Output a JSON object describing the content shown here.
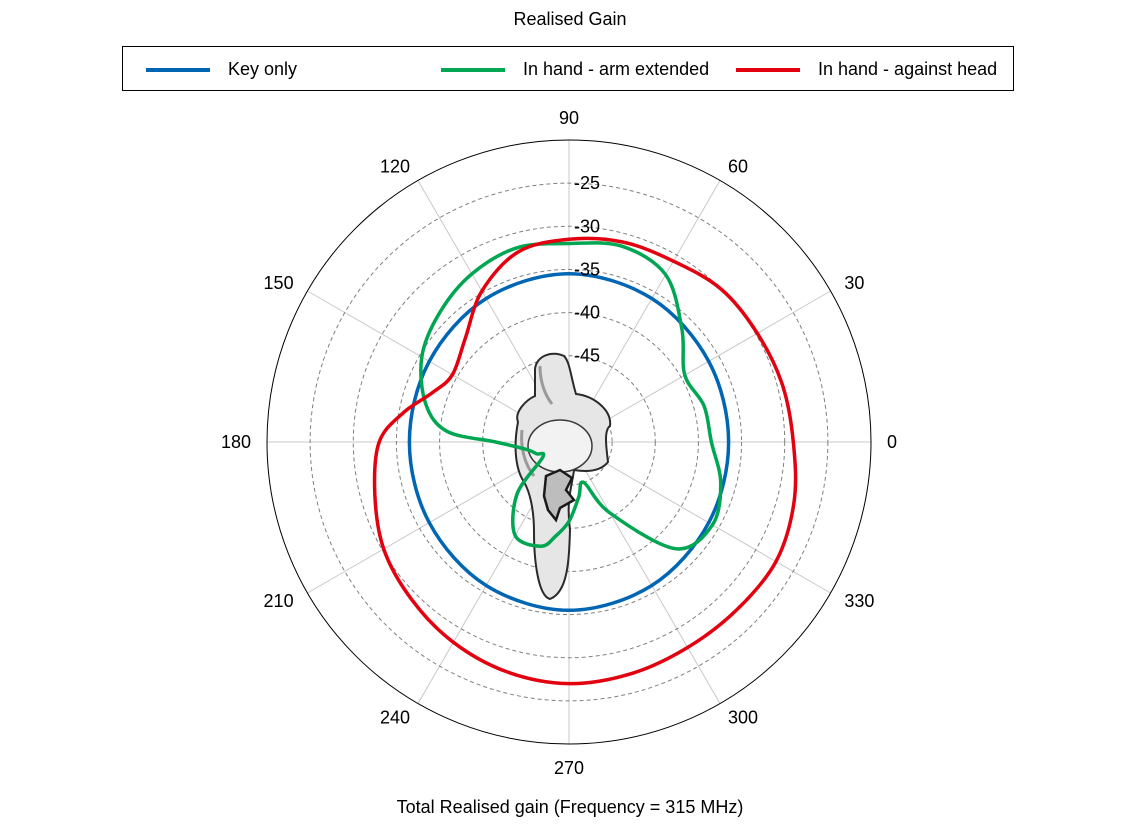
{
  "chart_data": {
    "type": "polar-line",
    "title": "Realised Gain",
    "caption": "Total Realised gain (Frequency = 315 MHz)",
    "angle_unit": "deg",
    "angle_ticks": [
      0,
      30,
      60,
      90,
      120,
      150,
      180,
      210,
      240,
      270,
      300,
      330
    ],
    "radial_tick_labels": [
      -25,
      -30,
      -35,
      -40,
      -45
    ],
    "radial_range": [
      -55,
      -20
    ],
    "grid": true,
    "legend_placement": "top",
    "series": [
      {
        "name": "Key only",
        "color": "#0066b3",
        "theta": [
          0,
          30,
          60,
          90,
          120,
          150,
          180,
          210,
          240,
          270,
          300,
          330,
          360
        ],
        "r": [
          -36.5,
          -36.3,
          -35.8,
          -35.5,
          -35.8,
          -36.3,
          -36.5,
          -36.3,
          -35.8,
          -35.5,
          -35.8,
          -36.3,
          -36.5
        ]
      },
      {
        "name": "In hand - arm extended",
        "color": "#00a651",
        "theta": [
          0,
          15,
          30,
          45,
          60,
          75,
          90,
          105,
          120,
          135,
          150,
          165,
          175,
          180,
          190,
          200,
          210,
          225,
          240,
          255,
          262,
          270,
          280,
          290,
          300,
          315,
          330,
          345,
          360
        ],
        "r": [
          -38.5,
          -38.8,
          -39.5,
          -36.5,
          -32.6,
          -31.5,
          -32.0,
          -31.7,
          -32.5,
          -33.8,
          -35.3,
          -37.8,
          -40.8,
          -46.5,
          -50.0,
          -51.0,
          -51.5,
          -46.5,
          -42.5,
          -42.5,
          -44.0,
          -45.8,
          -48.5,
          -50.0,
          -45.5,
          -37.5,
          -35.8,
          -36.8,
          -38.5
        ]
      },
      {
        "name": "In hand - against head",
        "color": "#e3000f",
        "theta": [
          0,
          15,
          30,
          45,
          60,
          75,
          90,
          105,
          120,
          135,
          150,
          160,
          170,
          180,
          195,
          210,
          225,
          240,
          255,
          270,
          285,
          300,
          315,
          330,
          345,
          360
        ],
        "r": [
          -29.0,
          -29.4,
          -29.8,
          -30.0,
          -30.8,
          -31.0,
          -31.5,
          -32.2,
          -34.8,
          -38.0,
          -39.4,
          -38.2,
          -35.5,
          -33.0,
          -31.7,
          -30.2,
          -29.2,
          -28.2,
          -27.4,
          -27.0,
          -27.2,
          -27.5,
          -27.5,
          -27.3,
          -28.0,
          -29.0
        ]
      }
    ]
  }
}
